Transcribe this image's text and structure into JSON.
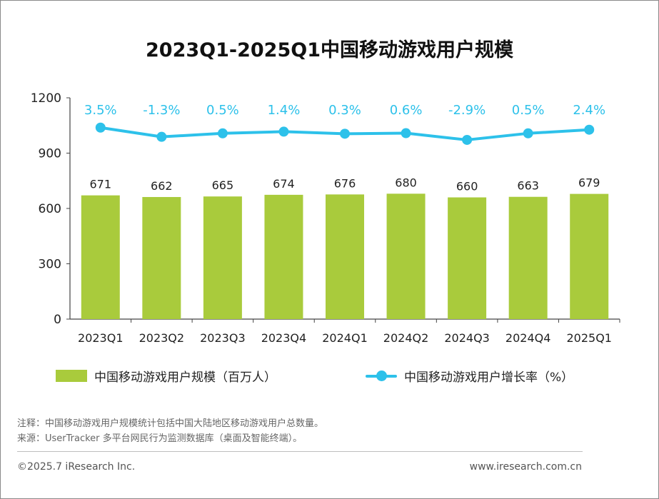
{
  "title": "2023Q1-2025Q1中国移动游戏用户规模",
  "chart_data": {
    "type": "bar",
    "categories": [
      "2023Q1",
      "2023Q2",
      "2023Q3",
      "2023Q4",
      "2024Q1",
      "2024Q2",
      "2024Q3",
      "2024Q4",
      "2025Q1"
    ],
    "series": [
      {
        "name": "中国移动游戏用户规模（百万人）",
        "type": "bar",
        "values": [
          671,
          662,
          665,
          674,
          676,
          680,
          660,
          663,
          679
        ],
        "labels": [
          "671",
          "662",
          "665",
          "674",
          "676",
          "680",
          "660",
          "663",
          "679"
        ],
        "color": "#a9cb3c"
      },
      {
        "name": "中国移动游戏用户增长率（%）",
        "type": "line",
        "values": [
          3.5,
          -1.3,
          0.5,
          1.4,
          0.3,
          0.6,
          -2.9,
          0.5,
          2.4
        ],
        "labels": [
          "3.5%",
          "-1.3%",
          "0.5%",
          "1.4%",
          "0.3%",
          "0.6%",
          "-2.9%",
          "0.5%",
          "2.4%"
        ],
        "color": "#2dc1ea"
      }
    ],
    "ylim": [
      0,
      1200
    ],
    "yticks": [
      "0",
      "300",
      "600",
      "900",
      "1200"
    ],
    "grid": false,
    "legend_position": "bottom"
  },
  "legend": {
    "bar_label": "中国移动游戏用户规模（百万人）",
    "line_label": "中国移动游戏用户增长率（%）"
  },
  "notes": {
    "note1": "注释：中国移动游戏用户规模统计包括中国大陆地区移动游戏用户总数量。",
    "note2": "来源：UserTracker 多平台网民行为监测数据库（桌面及智能终端）。"
  },
  "footer": {
    "copyright": "©2025.7 iResearch Inc.",
    "website": "www.iresearch.com.cn"
  }
}
